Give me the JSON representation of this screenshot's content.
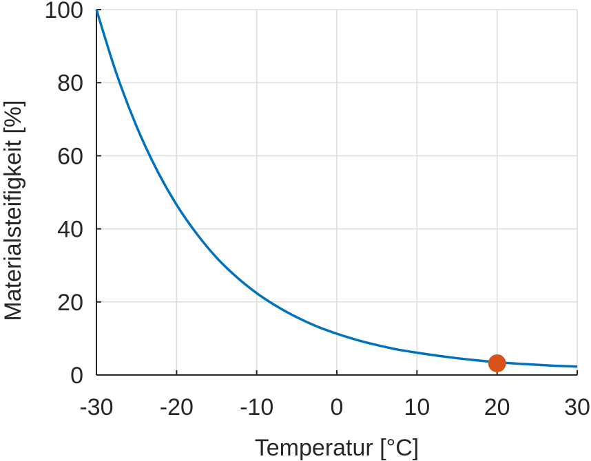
{
  "chart_data": {
    "type": "line",
    "title": "",
    "xlabel": "Temperatur [°C]",
    "ylabel": "Materialsteifigkeit [%]",
    "xlim": [
      -30,
      30
    ],
    "ylim": [
      0,
      100
    ],
    "grid": true,
    "x_ticks": [
      -30,
      -20,
      -10,
      0,
      10,
      20,
      30
    ],
    "x_tick_labels": [
      "-30",
      "-20",
      "-10",
      "0",
      "10",
      "20",
      "30"
    ],
    "y_ticks": [
      0,
      20,
      40,
      60,
      80,
      100
    ],
    "y_tick_labels": [
      "0",
      "20",
      "40",
      "60",
      "80",
      "100"
    ],
    "series": [
      {
        "color": "#0072bd",
        "x": [
          -30,
          -27.5,
          -25,
          -22.5,
          -20,
          -17.5,
          -15,
          -12.5,
          -10,
          -7.5,
          -5,
          -2.5,
          0,
          2.5,
          5,
          7.5,
          10,
          12.5,
          15,
          17.5,
          20,
          22.5,
          25,
          27.5,
          30
        ],
        "y": [
          100,
          82.5,
          68.1,
          56.3,
          46.6,
          38.7,
          32.1,
          26.8,
          22.4,
          18.8,
          15.8,
          13.3,
          11.3,
          9.6,
          8.2,
          7.0,
          6.1,
          5.3,
          4.6,
          4.0,
          3.5,
          3.1,
          2.8,
          2.5,
          2.3
        ]
      }
    ],
    "markers": [
      {
        "x": 20,
        "y": 3.2,
        "color": "#d95319"
      }
    ]
  }
}
